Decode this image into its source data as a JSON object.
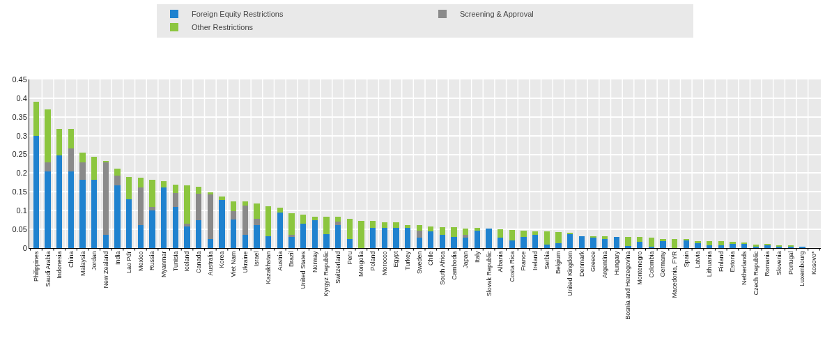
{
  "chart_data": {
    "type": "bar",
    "stacked": true,
    "legend": "top",
    "grid": true,
    "categories": [
      "Philippines",
      "Saudi Arabia",
      "Indonesia",
      "China",
      "Malaysia",
      "Jordan",
      "New Zealand",
      "India",
      "Lao Pdr",
      "Mexico",
      "Russia",
      "Myanmar",
      "Tunisia",
      "Iceland",
      "Canada",
      "Australia",
      "Korea",
      "Viet Nam",
      "Ukraine",
      "Israel",
      "Kazakhstan",
      "Austria",
      "Brazil",
      "United States",
      "Norway",
      "Kyrgyz Republic",
      "Switzerland",
      "Peru",
      "Mongolia",
      "Poland",
      "Morocco",
      "Egypt",
      "Turkey",
      "Sweden",
      "Chile",
      "South Africa",
      "Cambodia",
      "Japan",
      "Italy",
      "Slovak Republic",
      "Albania",
      "Costa Rica",
      "France",
      "Ireland",
      "Serbia",
      "Belgium",
      "United Kingdom",
      "Denmark",
      "Greece",
      "Argentina",
      "Hungary",
      "Bosnia and Herzegovina",
      "Montenegro",
      "Colombia",
      "Germany",
      "Macedonia, FYR",
      "Spain",
      "Latvia",
      "Lithuania",
      "Finland",
      "Estonia",
      "Netherlands",
      "Czech Republic",
      "Romania",
      "Slovenia",
      "Portugal",
      "Luxembourg",
      "Kosovo*"
    ],
    "ylim": [
      0,
      0.45
    ],
    "yticks": [
      0,
      0.05,
      0.1,
      0.15,
      0.2,
      0.25,
      0.3,
      0.35,
      0.4,
      0.45
    ],
    "series": [
      {
        "name": "Foreign Equity Restrictions",
        "color": "#1f82cf",
        "values": [
          0.3,
          0.205,
          0.248,
          0.205,
          0.182,
          0.182,
          0.035,
          0.167,
          0.13,
          0.062,
          0.1,
          0.162,
          0.11,
          0.058,
          0.075,
          0.025,
          0.128,
          0.076,
          0.035,
          0.062,
          0.031,
          0.095,
          0.03,
          0.066,
          0.074,
          0.038,
          0.062,
          0.025,
          0,
          0.054,
          0.054,
          0.054,
          0.054,
          0.027,
          0.045,
          0.036,
          0.03,
          0.027,
          0.046,
          0.052,
          0.027,
          0.021,
          0.03,
          0.036,
          0.009,
          0.013,
          0.038,
          0.032,
          0.027,
          0.025,
          0.03,
          0.006,
          0.016,
          0.003,
          0.019,
          0,
          0.021,
          0.013,
          0.007,
          0.008,
          0.013,
          0.013,
          0.004,
          0.008,
          0.005,
          0.005,
          0.004,
          0
        ]
      },
      {
        "name": "Screening & Approval",
        "color": "#8a8a8a",
        "values": [
          0,
          0.023,
          0,
          0.06,
          0.046,
          0,
          0.193,
          0.026,
          0,
          0.1,
          0.01,
          0,
          0.037,
          0.007,
          0.07,
          0.12,
          0,
          0.023,
          0.078,
          0.016,
          0,
          0,
          0.005,
          0,
          0,
          0,
          0.009,
          0,
          0,
          0,
          0,
          0,
          0,
          0.019,
          0,
          0,
          0,
          0.008,
          0,
          0,
          0,
          0,
          0,
          0,
          0,
          0,
          0,
          0,
          0,
          0,
          0,
          0,
          0,
          0,
          0,
          0,
          0,
          0,
          0,
          0,
          0,
          0,
          0,
          0,
          0,
          0,
          0,
          0
        ]
      },
      {
        "name": "Other Restrictions",
        "color": "#8cc63f",
        "values": [
          0.09,
          0.142,
          0.07,
          0.053,
          0.026,
          0.062,
          0.004,
          0.019,
          0.06,
          0.026,
          0.072,
          0.016,
          0.023,
          0.103,
          0.018,
          0.003,
          0.009,
          0.025,
          0.011,
          0.041,
          0.081,
          0.012,
          0.058,
          0.024,
          0.01,
          0.046,
          0.012,
          0.054,
          0.072,
          0.018,
          0.014,
          0.014,
          0.007,
          0.015,
          0.013,
          0.02,
          0.026,
          0.018,
          0.008,
          0,
          0.023,
          0.028,
          0.016,
          0.009,
          0.036,
          0.029,
          0.002,
          0,
          0.005,
          0.006,
          0,
          0.023,
          0.013,
          0.024,
          0.005,
          0.024,
          0.003,
          0.006,
          0.012,
          0.01,
          0.003,
          0.002,
          0.006,
          0.002,
          0.002,
          0.002,
          0,
          0
        ]
      }
    ]
  }
}
